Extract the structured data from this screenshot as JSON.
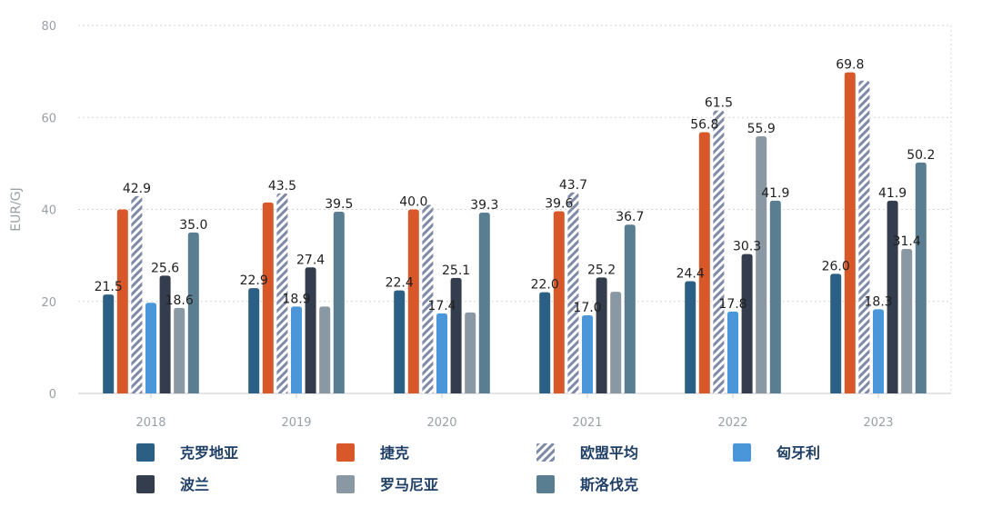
{
  "chart_data": {
    "type": "bar",
    "ylabel": "EUR/GJ",
    "xlabel": "",
    "ylim": [
      0,
      80
    ],
    "yticks": [
      0,
      20,
      40,
      60,
      80
    ],
    "grid": true,
    "legend_position": "bottom",
    "categories": [
      "2018",
      "2019",
      "2020",
      "2021",
      "2022",
      "2023"
    ],
    "series": [
      {
        "name": "克罗地亚",
        "color": "#2c5f84",
        "values": [
          21.5,
          22.9,
          22.4,
          22.0,
          24.4,
          26.0
        ],
        "labels": [
          "21.5",
          "22.9",
          "22.4",
          "22.0",
          "24.4",
          "26.0"
        ]
      },
      {
        "name": "捷克",
        "color": "#d9582a",
        "values": [
          40.0,
          41.5,
          40.0,
          39.6,
          56.8,
          69.8
        ],
        "labels": [
          "",
          "",
          "40.0",
          "39.6",
          "56.8",
          "69.8"
        ]
      },
      {
        "name": "欧盟平均",
        "color": "#7f8aa6",
        "pattern": "hatch",
        "values": [
          42.9,
          43.5,
          41.0,
          43.7,
          61.5,
          68.0
        ],
        "labels": [
          "42.9",
          "43.5",
          "",
          "43.7",
          "61.5",
          ""
        ]
      },
      {
        "name": "匈牙利",
        "color": "#4a96d8",
        "values": [
          19.7,
          18.9,
          17.4,
          17.0,
          17.8,
          18.3
        ],
        "labels": [
          "",
          "18.9",
          "17.4",
          "17.0",
          "17.8",
          "18.3"
        ]
      },
      {
        "name": "波兰",
        "color": "#343d4d",
        "values": [
          25.6,
          27.4,
          25.1,
          25.2,
          30.3,
          41.9
        ],
        "labels": [
          "25.6",
          "27.4",
          "25.1",
          "25.2",
          "30.3",
          "41.9"
        ]
      },
      {
        "name": "罗马尼亚",
        "color": "#8a98a4",
        "values": [
          18.6,
          18.9,
          17.6,
          22.1,
          55.9,
          31.4
        ],
        "labels": [
          "18.6",
          "",
          "",
          "",
          "55.9",
          "31.4"
        ]
      },
      {
        "name": "斯洛伐克",
        "color": "#5a7e91",
        "values": [
          35.0,
          39.5,
          39.3,
          36.7,
          41.9,
          50.2
        ],
        "labels": [
          "35.0",
          "39.5",
          "39.3",
          "36.7",
          "41.9",
          "50.2"
        ]
      }
    ],
    "legend": [
      {
        "label": "克罗地亚",
        "icon": "swatch-croatia"
      },
      {
        "label": "捷克",
        "icon": "swatch-czech"
      },
      {
        "label": "欧盟平均",
        "icon": "swatch-eu-average"
      },
      {
        "label": "匈牙利",
        "icon": "swatch-hungary"
      },
      {
        "label": "波兰",
        "icon": "swatch-poland"
      },
      {
        "label": "罗马尼亚",
        "icon": "swatch-romania"
      },
      {
        "label": "斯洛伐克",
        "icon": "swatch-slovakia"
      }
    ]
  }
}
